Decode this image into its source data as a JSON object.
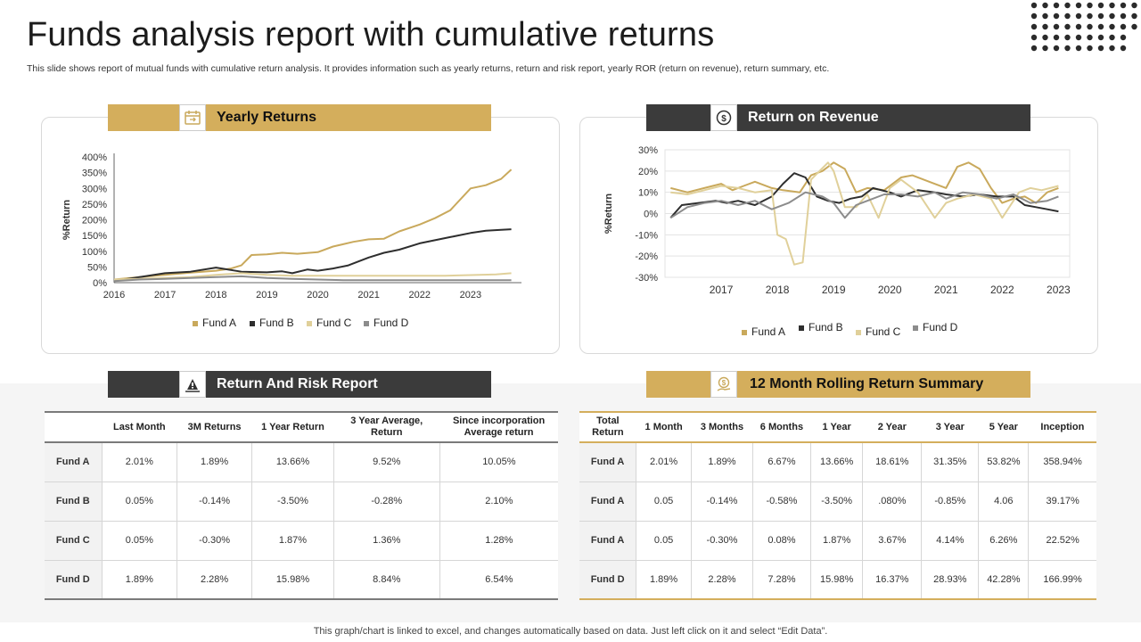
{
  "header": {
    "title": "Funds analysis report with cumulative returns",
    "subtitle": "This slide shows report of mutual funds with cumulative return analysis. It provides information such as yearly returns, return and risk report, yearly ROR (return on revenue), return summary, etc."
  },
  "colors": {
    "gold": "#d4ae5c",
    "dark": "#3b3b3b",
    "fundA": "#c9a95c",
    "fundB": "#2e2e2e",
    "fundC": "#e0d09a",
    "fundD": "#8c8c8c"
  },
  "sections": {
    "yearly_returns": "Yearly Returns",
    "return_on_revenue": "Return on Revenue",
    "return_risk": "Return And Risk Report",
    "rolling_summary": "12 Month Rolling Return Summary"
  },
  "icons": {
    "yearly_returns": "calendar-icon",
    "return_on_revenue": "dollar-cycle-icon",
    "return_risk": "risk-scale-icon",
    "rolling_summary": "money-hand-icon"
  },
  "chart_data": [
    {
      "type": "line",
      "title": "Yearly Returns",
      "ylabel": "%Return",
      "xlabel": "",
      "x_ticks": [
        "2016",
        "2017",
        "2018",
        "2019",
        "2020",
        "2021",
        "2022",
        "2023"
      ],
      "y_ticks": [
        "0%",
        "50%",
        "100%",
        "150%",
        "200%",
        "250%",
        "300%",
        "350%",
        "400%"
      ],
      "xlim": [
        2016,
        2024
      ],
      "ylim": [
        0,
        400
      ],
      "legend": "bottom",
      "grid": false,
      "series": [
        {
          "name": "Fund A",
          "x": [
            2016,
            2016.5,
            2017,
            2017.5,
            2018,
            2018.3,
            2018.5,
            2018.7,
            2019,
            2019.3,
            2019.6,
            2020,
            2020.3,
            2020.7,
            2021,
            2021.3,
            2021.6,
            2022,
            2022.3,
            2022.6,
            2023,
            2023.3,
            2023.6,
            2023.8
          ],
          "y": [
            10,
            18,
            25,
            32,
            38,
            45,
            55,
            88,
            90,
            95,
            92,
            97,
            115,
            130,
            138,
            140,
            163,
            185,
            205,
            230,
            300,
            310,
            330,
            360
          ]
        },
        {
          "name": "Fund B",
          "x": [
            2016,
            2016.5,
            2017,
            2017.5,
            2018,
            2018.5,
            2019,
            2019.3,
            2019.5,
            2019.8,
            2020,
            2020.3,
            2020.6,
            2021,
            2021.3,
            2021.6,
            2022,
            2022.3,
            2022.6,
            2023,
            2023.3,
            2023.6,
            2023.8
          ],
          "y": [
            5,
            18,
            30,
            35,
            48,
            35,
            33,
            36,
            30,
            42,
            38,
            45,
            55,
            80,
            95,
            105,
            125,
            135,
            145,
            158,
            165,
            168,
            170
          ]
        },
        {
          "name": "Fund C",
          "x": [
            2016,
            2016.5,
            2017,
            2017.5,
            2018,
            2018.5,
            2019,
            2019.5,
            2020,
            2020.5,
            2021,
            2021.5,
            2022,
            2022.5,
            2023,
            2023.5,
            2023.8
          ],
          "y": [
            10,
            12,
            15,
            18,
            25,
            30,
            25,
            22,
            22,
            22,
            22,
            22,
            22,
            22,
            24,
            26,
            30
          ]
        },
        {
          "name": "Fund D",
          "x": [
            2016,
            2016.5,
            2017,
            2017.5,
            2018,
            2018.5,
            2019,
            2019.5,
            2020,
            2020.5,
            2021,
            2021.5,
            2022,
            2022.5,
            2023,
            2023.5,
            2023.8
          ],
          "y": [
            5,
            10,
            12,
            15,
            18,
            20,
            15,
            12,
            10,
            8,
            8,
            8,
            8,
            8,
            8,
            8,
            8
          ]
        }
      ]
    },
    {
      "type": "line",
      "title": "Return on Revenue",
      "ylabel": "%Return",
      "xlabel": "",
      "x_ticks": [
        "2017",
        "2018",
        "2019",
        "2020",
        "2021",
        "2022",
        "2023"
      ],
      "y_ticks": [
        "-30%",
        "-20%",
        "-10%",
        "0%",
        "10%",
        "20%",
        "30%"
      ],
      "xlim": [
        2016,
        2023.2
      ],
      "ylim": [
        -30,
        30
      ],
      "legend": "bottom",
      "grid": true,
      "series": [
        {
          "name": "Fund A",
          "x": [
            2016.1,
            2016.4,
            2016.7,
            2017.0,
            2017.2,
            2017.4,
            2017.6,
            2017.9,
            2018.1,
            2018.4,
            2018.6,
            2018.8,
            2019.0,
            2019.2,
            2019.4,
            2019.6,
            2019.9,
            2020.2,
            2020.4,
            2020.7,
            2021.0,
            2021.2,
            2021.4,
            2021.6,
            2021.8,
            2022.0,
            2022.2,
            2022.4,
            2022.6,
            2022.8,
            2023.0
          ],
          "y": [
            12,
            10,
            12,
            14,
            11,
            13,
            15,
            12,
            11,
            10,
            18,
            20,
            24,
            21,
            10,
            12,
            11,
            17,
            18,
            15,
            12,
            22,
            24,
            21,
            12,
            5,
            7,
            8,
            5,
            10,
            12
          ]
        },
        {
          "name": "Fund B",
          "x": [
            2016.1,
            2016.3,
            2016.6,
            2016.9,
            2017.1,
            2017.3,
            2017.6,
            2017.9,
            2018.1,
            2018.3,
            2018.5,
            2018.7,
            2018.9,
            2019.1,
            2019.3,
            2019.5,
            2019.7,
            2020.0,
            2020.2,
            2020.5,
            2020.8,
            2021.0,
            2021.3,
            2021.6,
            2021.9,
            2022.2,
            2022.4,
            2022.6,
            2022.8,
            2023.0
          ],
          "y": [
            -2,
            4,
            5,
            6,
            5,
            6,
            4,
            8,
            14,
            19,
            17,
            8,
            6,
            5,
            7,
            8,
            12,
            10,
            8,
            11,
            10,
            9,
            8,
            9,
            8,
            8,
            4,
            3,
            2,
            1
          ]
        },
        {
          "name": "Fund C",
          "x": [
            2016.1,
            2016.4,
            2016.7,
            2017.0,
            2017.3,
            2017.6,
            2017.9,
            2018.0,
            2018.15,
            2018.3,
            2018.45,
            2018.6,
            2018.75,
            2018.9,
            2019.0,
            2019.2,
            2019.4,
            2019.6,
            2019.8,
            2020.0,
            2020.2,
            2020.5,
            2020.8,
            2021.0,
            2021.2,
            2021.5,
            2021.8,
            2022.0,
            2022.3,
            2022.5,
            2022.7,
            2023.0
          ],
          "y": [
            10,
            9,
            11,
            13,
            12,
            10,
            11,
            -10,
            -12,
            -24,
            -23,
            16,
            20,
            24,
            20,
            3,
            3,
            9,
            -2,
            12,
            16,
            10,
            -2,
            5,
            7,
            9,
            7,
            -2,
            10,
            12,
            11,
            13
          ]
        },
        {
          "name": "Fund D",
          "x": [
            2016.1,
            2016.4,
            2016.7,
            2017.0,
            2017.3,
            2017.6,
            2017.9,
            2018.2,
            2018.5,
            2018.8,
            2019.0,
            2019.2,
            2019.4,
            2019.6,
            2019.9,
            2020.2,
            2020.5,
            2020.8,
            2021.0,
            2021.3,
            2021.6,
            2021.9,
            2022.2,
            2022.5,
            2022.8,
            2023.0
          ],
          "y": [
            -2,
            3,
            5,
            6,
            4,
            6,
            2,
            5,
            10,
            8,
            5,
            -2,
            4,
            6,
            9,
            9,
            8,
            10,
            7,
            10,
            9,
            7,
            9,
            5,
            6,
            8
          ]
        }
      ]
    }
  ],
  "return_risk_table": {
    "headers": [
      "",
      "Last Month",
      "3M Returns",
      "1 Year Return",
      "3 Year Average, Return",
      "Since incorporation Average return"
    ],
    "rows": [
      [
        "Fund  A",
        "2.01%",
        "1.89%",
        "13.66%",
        "9.52%",
        "10.05%"
      ],
      [
        "Fund  B",
        "0.05%",
        "-0.14%",
        "-3.50%",
        "-0.28%",
        "2.10%"
      ],
      [
        "Fund  C",
        "0.05%",
        "-0.30%",
        "1.87%",
        "1.36%",
        "1.28%"
      ],
      [
        "Fund  D",
        "1.89%",
        "2.28%",
        "15.98%",
        "8.84%",
        "6.54%"
      ]
    ]
  },
  "rolling_table": {
    "headers": [
      "Total Return",
      "1 Month",
      "3 Months",
      "6 Months",
      "1 Year",
      "2 Year",
      "3 Year",
      "5 Year",
      "Inception"
    ],
    "rows": [
      [
        "Fund  A",
        "2.01%",
        "1.89%",
        "6.67%",
        "13.66%",
        "18.61%",
        "31.35%",
        "53.82%",
        "358.94%"
      ],
      [
        "Fund  A",
        "0.05",
        "-0.14%",
        "-0.58%",
        "-3.50%",
        ".080%",
        "-0.85%",
        "4.06",
        "39.17%"
      ],
      [
        "Fund  A",
        "0.05",
        "-0.30%",
        "0.08%",
        "1.87%",
        "3.67%",
        "4.14%",
        "6.26%",
        "22.52%"
      ],
      [
        "Fund  D",
        "1.89%",
        "2.28%",
        "7.28%",
        "15.98%",
        "16.37%",
        "28.93%",
        "42.28%",
        "166.99%"
      ]
    ]
  },
  "footer": "This graph/chart is linked to excel,  and changes automatically based on data. Just left click on it and select “Edit Data”."
}
